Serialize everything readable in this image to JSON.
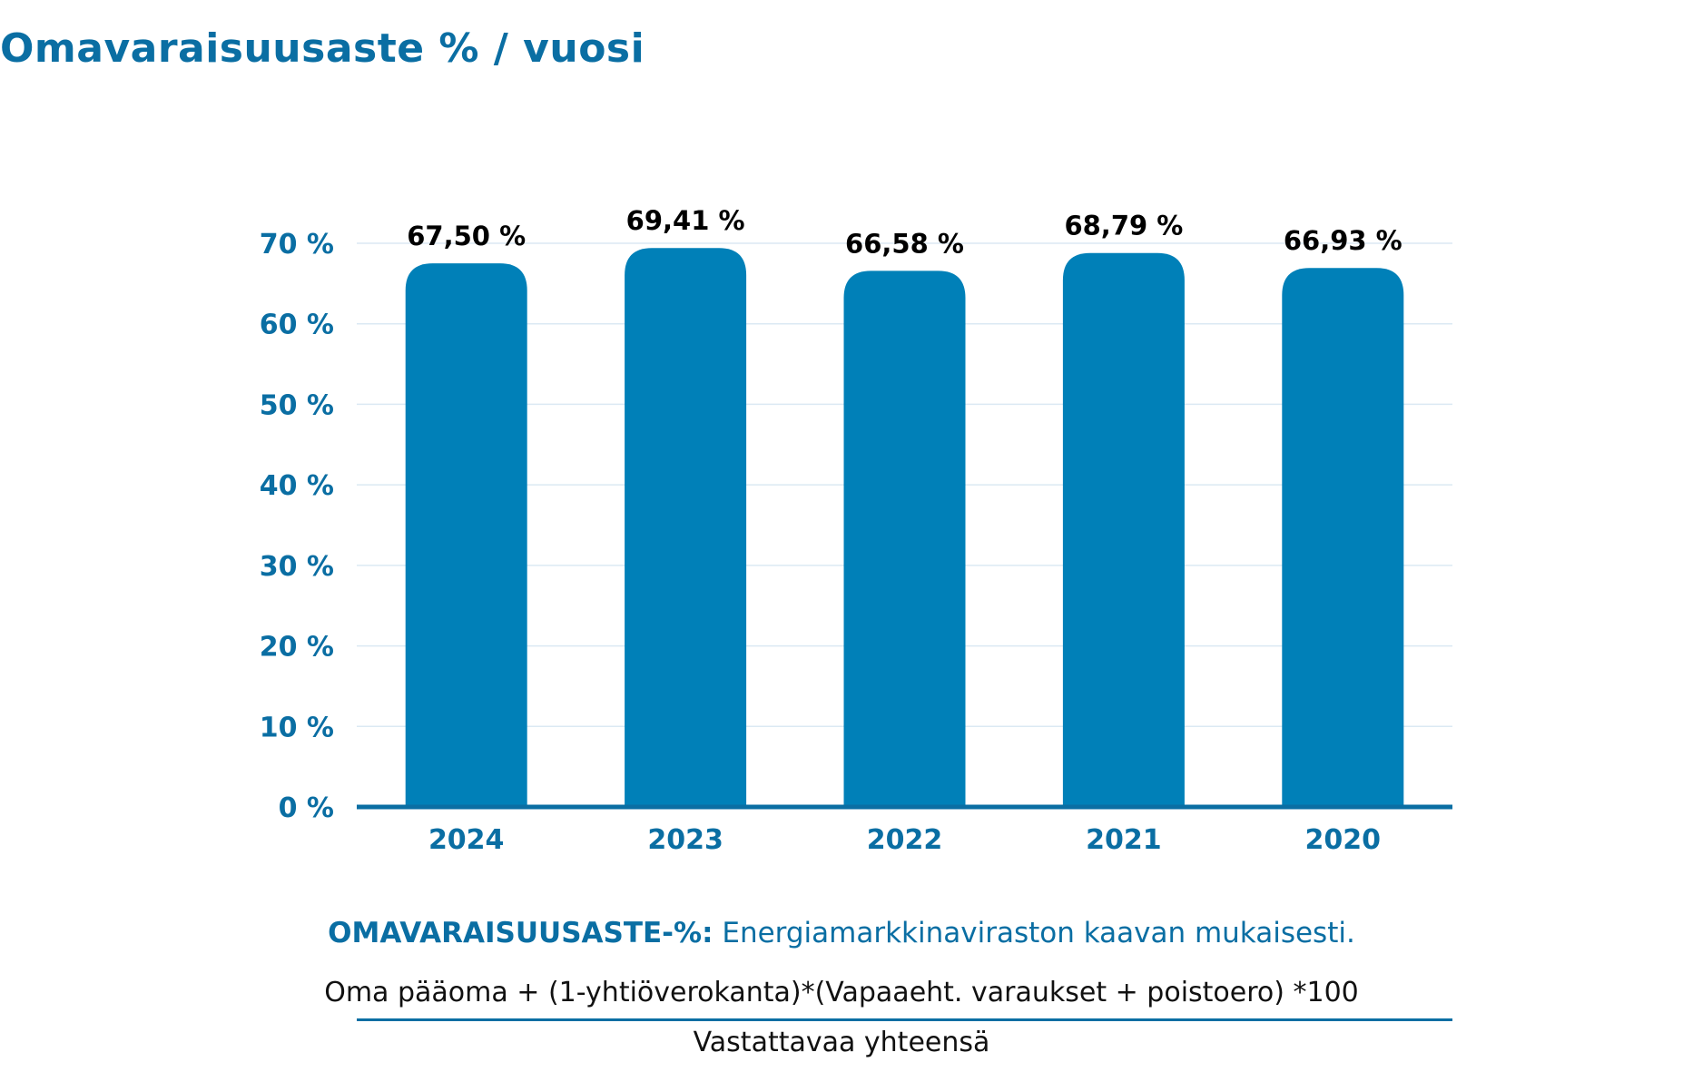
{
  "title": "Omavaraisuusaste % / vuosi",
  "colors": {
    "accent": "#0a6ea3",
    "bar": "#0080b8",
    "grid": "#dbe9f3",
    "label": "#000000"
  },
  "chart_data": {
    "type": "bar",
    "categories": [
      "2024",
      "2023",
      "2022",
      "2021",
      "2020"
    ],
    "values": [
      67.5,
      69.41,
      66.58,
      68.79,
      66.93
    ],
    "value_labels": [
      "67,50 %",
      "69,41 %",
      "66,58 %",
      "68,79 %",
      "66,93 %"
    ],
    "y_ticks": [
      0,
      10,
      20,
      30,
      40,
      50,
      60,
      70
    ],
    "y_tick_labels": [
      "0 %",
      "10 %",
      "20 %",
      "30 %",
      "40 %",
      "50 %",
      "60 %",
      "70 %"
    ],
    "ylim": [
      0,
      70
    ],
    "grid": true,
    "legend": "none",
    "title": "Omavaraisuusaste % / vuosi",
    "xlabel": "",
    "ylabel": ""
  },
  "formula": {
    "heading_bold": "OMAVARAISUUSASTE-%:",
    "heading_text": " Energiamarkkinaviraston kaavan mukaisesti.",
    "numerator": "Oma pääoma + (1-yhtiöverokanta)*(Vapaaeht. varaukset + poistoero) *100",
    "denominator": "Vastattavaa yhteensä"
  }
}
